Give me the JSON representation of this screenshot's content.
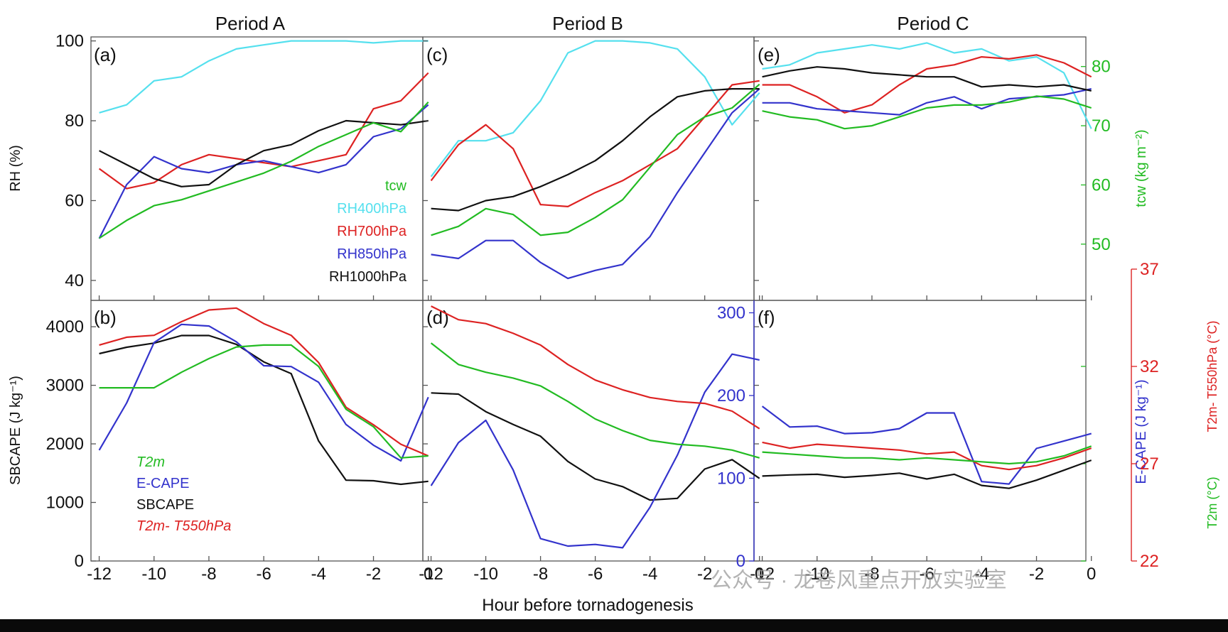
{
  "periods": [
    "Period A",
    "Period B",
    "Period C"
  ],
  "panel_labels": [
    "(a)",
    "(c)",
    "(e)",
    "(b)",
    "(d)",
    "(f)"
  ],
  "xlabel": "Hour before tornadogenesis",
  "axes": {
    "rh_label": "RH (%)",
    "tcw_label": "tcw (kg m⁻²)",
    "sbcape_label": "SBCAPE (J kg⁻¹)",
    "ecape_label": "E-CAPE (J kg⁻¹)",
    "t2m_label": "T2m (°C)",
    "tdiff_label": "T2m- T550hPa (°C)"
  },
  "legend_top": [
    "tcw",
    "RH400hPa",
    "RH700hPa",
    "RH850hPa",
    "RH1000hPa"
  ],
  "legend_bottom": [
    "T2m",
    "E-CAPE",
    "SBCAPE",
    "T2m- T550hPa"
  ],
  "watermark": "公众号 · 龙卷风重点开放实验室",
  "colors": {
    "tcw": "#22bb22",
    "rh400": "#55e0ee",
    "rh700": "#dd2222",
    "rh850": "#3333cc",
    "rh1000": "#111111",
    "t2m": "#22bb22",
    "ecape": "#3333cc",
    "sbcape": "#111111",
    "tdiff": "#dd2222"
  },
  "chart_data": [
    {
      "panel": "(a)",
      "type": "line",
      "period": "Period A",
      "xlim": [
        -12.3,
        -0.2
      ],
      "ylim": [
        35,
        101
      ],
      "ylim_right": [
        40.5,
        85
      ],
      "xticks": [
        -12,
        -10,
        -8,
        -6,
        -4,
        -2,
        0
      ],
      "yticks": [
        40,
        60,
        80,
        100
      ],
      "yticks_right": [
        50,
        60,
        70,
        80
      ],
      "x": [
        -12,
        -11,
        -10,
        -9,
        -8,
        -7,
        -6,
        -5,
        -4,
        -3,
        -2,
        -1,
        0
      ],
      "series": [
        {
          "key": "rh400",
          "axis": "left",
          "values": [
            82,
            84,
            90,
            91,
            95,
            98,
            99,
            100,
            100,
            100,
            99.5,
            100,
            100
          ]
        },
        {
          "key": "rh700",
          "axis": "left",
          "values": [
            68,
            63,
            64.5,
            69,
            71.5,
            70.5,
            69.5,
            68.5,
            70,
            71.5,
            83,
            85,
            92
          ]
        },
        {
          "key": "rh850",
          "axis": "left",
          "values": [
            50.5,
            64,
            71,
            68,
            67,
            69,
            70,
            68.5,
            67,
            69,
            76,
            78,
            84
          ]
        },
        {
          "key": "rh1000",
          "axis": "left",
          "values": [
            72.5,
            69,
            65.5,
            63.5,
            64,
            69,
            72.5,
            74,
            77.5,
            80,
            79.5,
            79,
            80
          ]
        },
        {
          "key": "tcw",
          "axis": "right",
          "values": [
            51,
            54,
            56.5,
            57.5,
            59,
            60.5,
            62,
            64,
            66.5,
            68.5,
            70.5,
            69,
            74
          ]
        }
      ]
    },
    {
      "panel": "(c)",
      "type": "line",
      "period": "Period B",
      "xlim": [
        -12.3,
        -0.2
      ],
      "ylim": [
        35,
        101
      ],
      "ylim_right": [
        40.5,
        85
      ],
      "xticks": [
        -12,
        -10,
        -8,
        -6,
        -4,
        -2,
        0
      ],
      "yticks": [
        40,
        60,
        80,
        100
      ],
      "yticks_right": [
        50,
        60,
        70,
        80
      ],
      "x": [
        -12,
        -11,
        -10,
        -9,
        -8,
        -7,
        -6,
        -5,
        -4,
        -3,
        -2,
        -1,
        0
      ],
      "series": [
        {
          "key": "rh400",
          "axis": "left",
          "values": [
            66,
            75,
            75,
            77,
            85,
            97,
            100,
            100,
            99.5,
            98,
            91,
            79,
            87
          ]
        },
        {
          "key": "rh700",
          "axis": "left",
          "values": [
            65,
            74,
            79,
            73,
            59,
            58.5,
            62,
            65,
            69,
            73,
            81,
            89,
            90
          ]
        },
        {
          "key": "rh850",
          "axis": "left",
          "values": [
            46.5,
            45.5,
            50,
            50,
            44.5,
            40.5,
            42.5,
            44,
            51,
            62,
            72,
            82,
            88
          ]
        },
        {
          "key": "rh1000",
          "axis": "left",
          "values": [
            58,
            57.5,
            60,
            61,
            63.5,
            66.5,
            70,
            75,
            81,
            86,
            87.5,
            88,
            88
          ]
        },
        {
          "key": "tcw",
          "axis": "right",
          "values": [
            51.5,
            53,
            56,
            55,
            51.5,
            52,
            54.5,
            57.5,
            63,
            68.5,
            71.5,
            73,
            77
          ]
        }
      ]
    },
    {
      "panel": "(e)",
      "type": "line",
      "period": "Period C",
      "xlim": [
        -12.3,
        -0.2
      ],
      "ylim": [
        35,
        101
      ],
      "ylim_right": [
        40.5,
        85
      ],
      "xticks": [
        -12,
        -10,
        -8,
        -6,
        -4,
        -2,
        0
      ],
      "yticks": [
        40,
        60,
        80,
        100
      ],
      "yticks_right": [
        50,
        60,
        70,
        80
      ],
      "x": [
        -12,
        -11,
        -10,
        -9,
        -8,
        -7,
        -6,
        -5,
        -4,
        -3,
        -2,
        -1,
        0
      ],
      "series": [
        {
          "key": "rh400",
          "axis": "left",
          "values": [
            93,
            94,
            97,
            98,
            99,
            98,
            99.5,
            97,
            98,
            95,
            96,
            92,
            78
          ]
        },
        {
          "key": "rh700",
          "axis": "left",
          "values": [
            89,
            89,
            86,
            82,
            84,
            89,
            93,
            94,
            96,
            95.5,
            96.5,
            94.5,
            91
          ]
        },
        {
          "key": "rh850",
          "axis": "left",
          "values": [
            84.5,
            84.5,
            83,
            82.5,
            82,
            81.5,
            84.5,
            86,
            83,
            85.5,
            86,
            86.5,
            88
          ]
        },
        {
          "key": "rh1000",
          "axis": "left",
          "values": [
            91,
            92.5,
            93.5,
            93,
            92,
            91.5,
            91,
            91,
            88.5,
            89,
            88.5,
            89,
            87.5
          ]
        },
        {
          "key": "tcw",
          "axis": "right",
          "values": [
            72.5,
            71.5,
            71,
            69.5,
            70,
            71.5,
            73,
            73.5,
            73.5,
            74,
            75,
            74.5,
            73
          ]
        }
      ]
    },
    {
      "panel": "(b)",
      "type": "line",
      "period": "Period A",
      "xlim": [
        -12.3,
        -0.2
      ],
      "ylim": [
        0,
        4450
      ],
      "ylim_ecape": [
        0,
        315
      ],
      "ylim_tdiff": [
        22,
        37
      ],
      "ylim_t2m": [
        22,
        37
      ],
      "xticks": [
        -12,
        -10,
        -8,
        -6,
        -4,
        -2,
        0
      ],
      "yticks": [
        0,
        1000,
        2000,
        3000,
        4000
      ],
      "x": [
        -12,
        -11,
        -10,
        -9,
        -8,
        -7,
        -6,
        -5,
        -4,
        -3,
        -2,
        -1,
        0
      ],
      "series": [
        {
          "key": "sbcape",
          "axis": "sbcape",
          "values": [
            3540,
            3650,
            3720,
            3850,
            3850,
            3700,
            3400,
            3200,
            2050,
            1380,
            1370,
            1310,
            1360
          ]
        },
        {
          "key": "ecape",
          "axis": "ecape",
          "values": [
            134,
            191,
            264,
            286,
            284,
            265,
            236,
            235,
            216,
            165,
            140,
            121,
            198
          ]
        },
        {
          "key": "tdiff",
          "axis": "tdiff",
          "values": [
            33.1,
            33.5,
            33.6,
            34.3,
            34.9,
            35.0,
            34.2,
            33.6,
            32.2,
            29.9,
            29.0,
            28.0,
            27.4
          ]
        },
        {
          "key": "t2m",
          "axis": "t2m",
          "values": [
            30.9,
            30.9,
            30.9,
            31.7,
            32.4,
            33.0,
            33.1,
            33.1,
            32.0,
            29.8,
            28.9,
            27.3,
            27.4
          ]
        }
      ]
    },
    {
      "panel": "(d)",
      "type": "line",
      "period": "Period B",
      "xlim": [
        -12.3,
        -0.2
      ],
      "ylim": [
        0,
        4450
      ],
      "ylim_ecape": [
        0,
        315
      ],
      "ylim_tdiff": [
        22,
        37
      ],
      "ylim_t2m": [
        22,
        37
      ],
      "xticks": [
        -12,
        -10,
        -8,
        -6,
        -4,
        -2,
        0
      ],
      "yticks": [
        0,
        1000,
        2000,
        3000,
        4000
      ],
      "ecape_ticks": [
        0,
        100,
        200,
        300
      ],
      "tdiff_ticks": [
        22,
        27,
        32,
        37
      ],
      "x": [
        -12,
        -11,
        -10,
        -9,
        -8,
        -7,
        -6,
        -5,
        -4,
        -3,
        -2,
        -1,
        0
      ],
      "series": [
        {
          "key": "sbcape",
          "axis": "sbcape",
          "values": [
            2870,
            2850,
            2550,
            2330,
            2130,
            1700,
            1400,
            1270,
            1040,
            1070,
            1570,
            1730,
            1410
          ]
        },
        {
          "key": "ecape",
          "axis": "ecape",
          "values": [
            91,
            143,
            170,
            110,
            27,
            18,
            20,
            16,
            65,
            128,
            204,
            250,
            243
          ]
        },
        {
          "key": "tdiff",
          "axis": "tdiff",
          "values": [
            35.1,
            34.4,
            34.2,
            33.7,
            33.1,
            32.1,
            31.3,
            30.8,
            30.4,
            30.2,
            30.1,
            29.7,
            28.8
          ]
        },
        {
          "key": "t2m",
          "axis": "t2m",
          "values": [
            33.2,
            32.1,
            31.7,
            31.4,
            31.0,
            30.2,
            29.3,
            28.7,
            28.2,
            28.0,
            27.9,
            27.7,
            27.3
          ]
        }
      ]
    },
    {
      "panel": "(f)",
      "type": "line",
      "period": "Period C",
      "xlim": [
        -12.3,
        -0.2
      ],
      "ylim": [
        0,
        4450
      ],
      "ylim_ecape": [
        0,
        315
      ],
      "ylim_tdiff": [
        22,
        37
      ],
      "ylim_t2m": [
        22,
        37
      ],
      "xticks": [
        -12,
        -10,
        -8,
        -6,
        -4,
        -2,
        0
      ],
      "yticks_t2m": [
        22,
        27,
        32,
        37
      ],
      "x": [
        -12,
        -11,
        -10,
        -9,
        -8,
        -7,
        -6,
        -5,
        -4,
        -3,
        -2,
        -1,
        0
      ],
      "series": [
        {
          "key": "sbcape",
          "axis": "sbcape",
          "values": [
            1450,
            1470,
            1480,
            1430,
            1460,
            1500,
            1400,
            1480,
            1290,
            1240,
            1380,
            1550,
            1720
          ]
        },
        {
          "key": "ecape",
          "axis": "ecape",
          "values": [
            187,
            162,
            163,
            154,
            155,
            160,
            179,
            179,
            96,
            93,
            136,
            145,
            154
          ]
        },
        {
          "key": "tdiff",
          "axis": "tdiff",
          "values": [
            28.1,
            27.8,
            28.0,
            27.9,
            27.8,
            27.7,
            27.5,
            27.6,
            26.9,
            26.7,
            26.9,
            27.3,
            27.8
          ]
        },
        {
          "key": "t2m",
          "axis": "t2m",
          "values": [
            27.6,
            27.5,
            27.4,
            27.3,
            27.3,
            27.2,
            27.3,
            27.2,
            27.1,
            27.0,
            27.1,
            27.4,
            27.9
          ]
        }
      ]
    }
  ]
}
